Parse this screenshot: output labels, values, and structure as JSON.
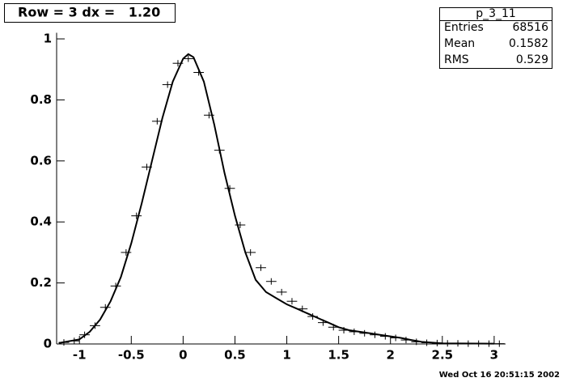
{
  "chart_data": {
    "type": "errorbar",
    "title": "Row = 3 dx =   1.20",
    "timestamp": "Wed Oct 16 20:51:15 2002",
    "stats": {
      "title": "p_3_11",
      "rows": [
        {
          "label": "Entries",
          "value": 68516
        },
        {
          "label": "Mean",
          "value": 0.1582
        },
        {
          "label": "RMS",
          "value": 0.529
        }
      ]
    },
    "x": [
      -1.15,
      -1.05,
      -0.95,
      -0.85,
      -0.75,
      -0.65,
      -0.55,
      -0.45,
      -0.35,
      -0.25,
      -0.15,
      -0.05,
      0.05,
      0.15,
      0.25,
      0.35,
      0.45,
      0.55,
      0.65,
      0.75,
      0.85,
      0.95,
      1.05,
      1.15,
      1.25,
      1.35,
      1.45,
      1.55,
      1.65,
      1.75,
      1.85,
      1.95,
      2.05,
      2.15,
      2.25,
      2.35,
      2.45,
      2.55,
      2.65,
      2.75,
      2.85,
      2.95,
      3.05
    ],
    "values": [
      0.005,
      0.01,
      0.03,
      0.06,
      0.12,
      0.19,
      0.3,
      0.42,
      0.58,
      0.73,
      0.85,
      0.92,
      0.935,
      0.89,
      0.75,
      0.635,
      0.51,
      0.39,
      0.3,
      0.25,
      0.205,
      0.17,
      0.14,
      0.115,
      0.09,
      0.07,
      0.055,
      0.045,
      0.04,
      0.035,
      0.03,
      0.025,
      0.02,
      0.013,
      0.007,
      0.004,
      0.003,
      0.002,
      0.002,
      0.001,
      0.001,
      0.001,
      0.001
    ],
    "fit": {
      "x": [
        -1.2,
        -1.0,
        -0.9,
        -0.8,
        -0.7,
        -0.6,
        -0.5,
        -0.4,
        -0.3,
        -0.2,
        -0.1,
        0.0,
        0.05,
        0.1,
        0.2,
        0.3,
        0.4,
        0.5,
        0.6,
        0.7,
        0.8,
        0.9,
        1.0,
        1.1,
        1.2,
        1.3,
        1.4,
        1.5,
        1.6,
        1.7,
        1.8,
        1.9,
        2.0,
        2.1,
        2.2,
        2.3,
        2.5,
        3.0
      ],
      "values": [
        0.003,
        0.015,
        0.04,
        0.08,
        0.14,
        0.22,
        0.33,
        0.46,
        0.6,
        0.74,
        0.86,
        0.935,
        0.95,
        0.94,
        0.86,
        0.72,
        0.56,
        0.42,
        0.3,
        0.21,
        0.17,
        0.15,
        0.13,
        0.115,
        0.1,
        0.085,
        0.07,
        0.055,
        0.045,
        0.04,
        0.035,
        0.03,
        0.025,
        0.02,
        0.013,
        0.007,
        0.002,
        0.001
      ]
    },
    "xlim": [
      -1.22,
      3.11
    ],
    "ylim": [
      0,
      1.02
    ],
    "xticks": [
      -1,
      -0.5,
      0,
      0.5,
      1,
      1.5,
      2,
      2.5,
      3
    ],
    "yticks": [
      0,
      0.2,
      0.4,
      0.6,
      0.8,
      1
    ],
    "color": "#000000"
  }
}
